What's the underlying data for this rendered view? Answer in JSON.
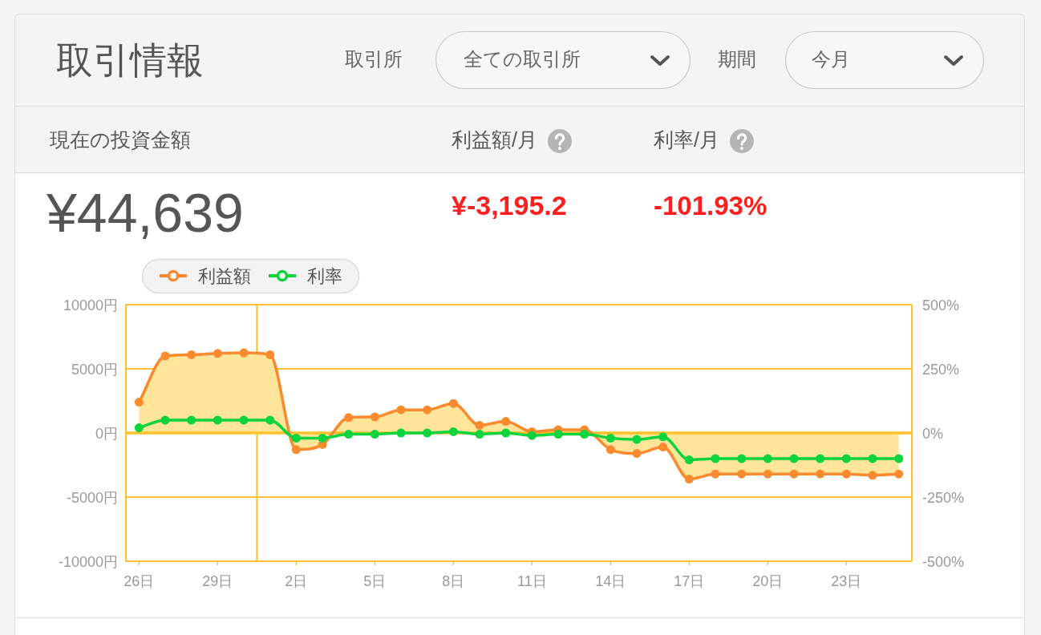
{
  "chart_data": {
    "type": "line",
    "title": "取引情報",
    "annotations": [
      "取引所",
      "全ての取引所",
      "期間",
      "今月",
      "現在の投資金額",
      "利益額/月",
      "利率/月",
      "¥44,639",
      "¥-3,195.2",
      "-101.93%"
    ],
    "categories": [
      "26日",
      null,
      null,
      "29日",
      null,
      null,
      "2日",
      null,
      null,
      "5日",
      null,
      null,
      "8日",
      null,
      null,
      "11日",
      null,
      null,
      "14日",
      null,
      null,
      "17日",
      null,
      null,
      "20日",
      null,
      null,
      "23日",
      null,
      null
    ],
    "series": [
      {
        "name": "利益額",
        "type": "area",
        "color": "#fa8a2e",
        "values": [
          2400,
          6000,
          6100,
          6200,
          6250,
          6100,
          -1300,
          -900,
          1200,
          1250,
          1800,
          1800,
          2300,
          600,
          900,
          100,
          250,
          250,
          -1300,
          -1600,
          -1100,
          -3600,
          -3200,
          -3200,
          -3200,
          -3200,
          -3200,
          -3200,
          -3300,
          -3200
        ]
      },
      {
        "name": "利率",
        "type": "line",
        "color": "#0bd43c",
        "axis": "y2",
        "values": [
          20,
          50,
          50,
          50,
          50,
          50,
          -20,
          -20,
          -5,
          -5,
          0,
          0,
          5,
          -5,
          0,
          -10,
          -5,
          -5,
          -20,
          -25,
          -15,
          -105,
          -100,
          -100,
          -100,
          -100,
          -100,
          -100,
          -100,
          -100
        ]
      }
    ],
    "ylim": [
      -10000,
      10000
    ],
    "yticks": [
      {
        "value": 10000,
        "label": "10000円"
      },
      {
        "value": 5000,
        "label": "5000円"
      },
      {
        "value": 0,
        "label": "0円"
      },
      {
        "value": -5000,
        "label": "-5000円"
      },
      {
        "value": -10000,
        "label": "-10000円"
      }
    ],
    "y2lim": [
      -500,
      500
    ],
    "y2ticks": [
      {
        "value": 500,
        "label": "500%"
      },
      {
        "value": 250,
        "label": "250%"
      },
      {
        "value": 0,
        "label": "0%"
      },
      {
        "value": -250,
        "label": "-250%"
      },
      {
        "value": -500,
        "label": "-500%"
      }
    ],
    "ref_lines": [
      {
        "axis": "y",
        "value": 0,
        "color": "#ffc12b"
      }
    ],
    "grid": "y",
    "legend": "top left",
    "marker": "circle",
    "line_style": "solid"
  }
}
